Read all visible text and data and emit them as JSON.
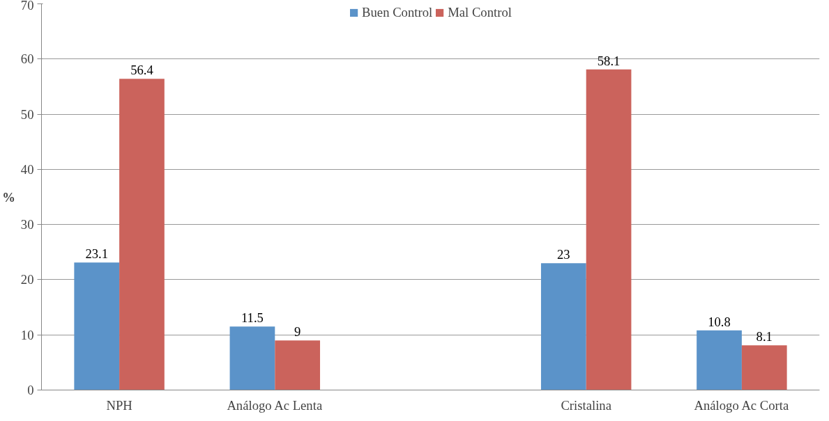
{
  "chart_data": {
    "type": "bar",
    "ylabel": "%",
    "categories": [
      "NPH",
      "Análogo Ac Lenta",
      null,
      "Cristalina",
      "Análogo Ac Corta"
    ],
    "series": [
      {
        "name": "Buen Control",
        "color": "#5b93c9",
        "values": [
          23.1,
          11.5,
          null,
          23,
          10.8
        ]
      },
      {
        "name": "Mal Control",
        "color": "#cb635c",
        "values": [
          56.4,
          9,
          null,
          58.1,
          8.1
        ]
      }
    ],
    "ylim": [
      0,
      70
    ],
    "yticks": [
      0,
      10,
      20,
      30,
      40,
      50,
      60,
      70
    ],
    "grid": "y",
    "legend": "top",
    "data_labels": true
  }
}
